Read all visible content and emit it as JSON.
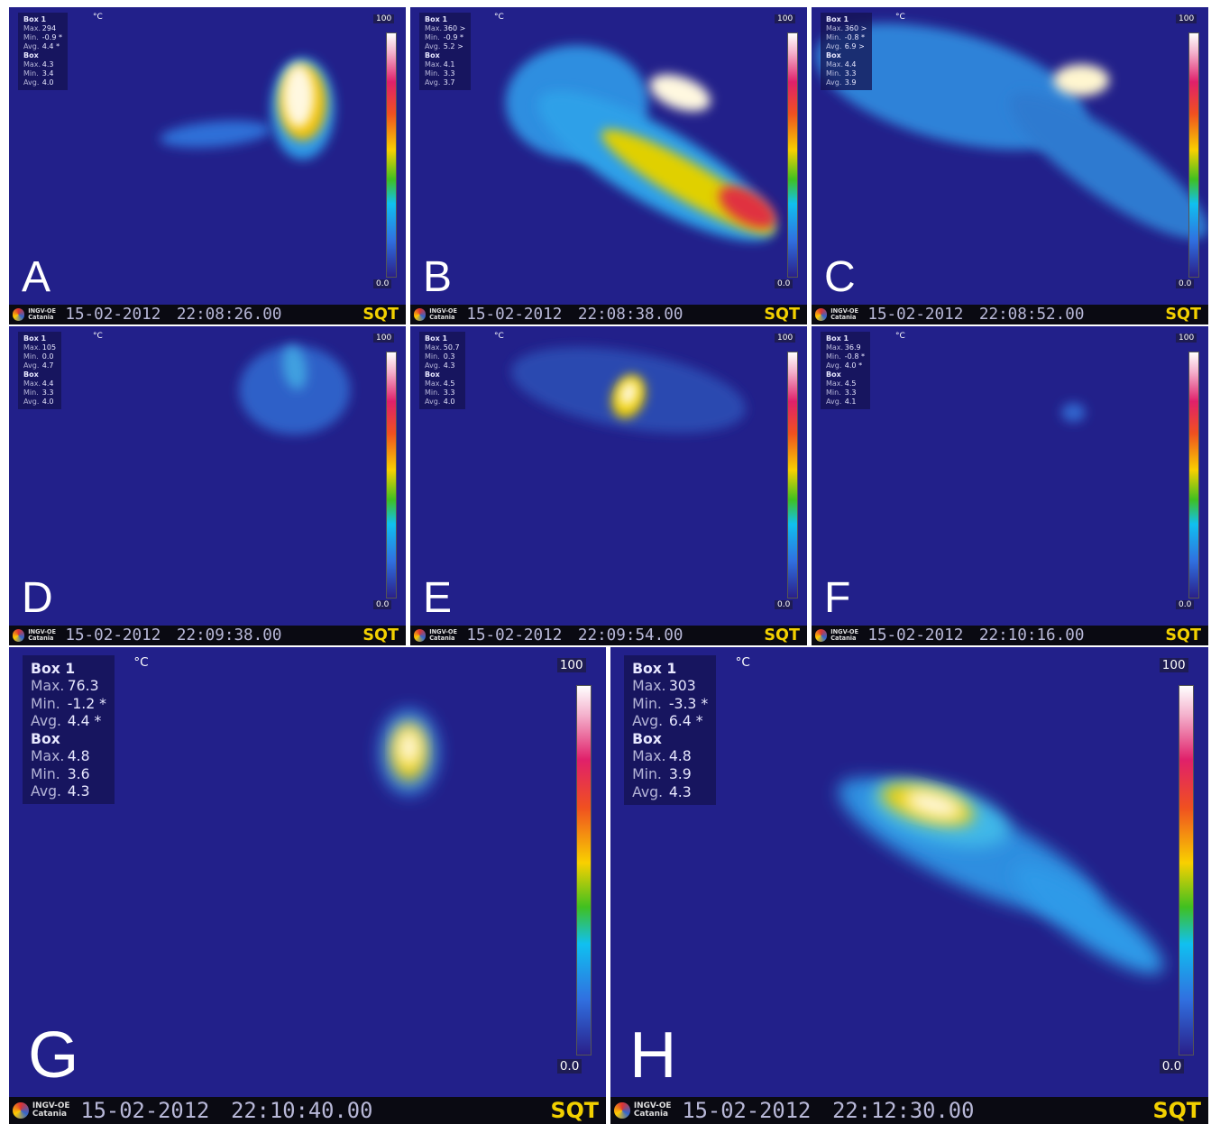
{
  "panels": [
    {
      "label": "A",
      "unit": "°C",
      "scale_max": "100",
      "scale_min": "0.0",
      "logo": "INGV-OE Catania",
      "date": "15-02-2012",
      "time": "22:08:26.00",
      "station": "SQT",
      "stats": [
        {
          "title": "Box 1",
          "rows": [
            [
              "Max.",
              "294"
            ],
            [
              "Min.",
              "-0.9 *"
            ],
            [
              "Avg.",
              "4.4 *"
            ]
          ]
        },
        {
          "title": "Box",
          "rows": [
            [
              "Max.",
              "4.3"
            ],
            [
              "Min.",
              "3.4"
            ],
            [
              "Avg.",
              "4.0"
            ]
          ]
        }
      ]
    },
    {
      "label": "B",
      "unit": "°C",
      "scale_max": "100",
      "scale_min": "0.0",
      "logo": "INGV-OE Catania",
      "date": "15-02-2012",
      "time": "22:08:38.00",
      "station": "SQT",
      "stats": [
        {
          "title": "Box 1",
          "rows": [
            [
              "Max.",
              "360 >"
            ],
            [
              "Min.",
              "-0.9 *"
            ],
            [
              "Avg.",
              "5.2 >"
            ]
          ]
        },
        {
          "title": "Box",
          "rows": [
            [
              "Max.",
              "4.1"
            ],
            [
              "Min.",
              "3.3"
            ],
            [
              "Avg.",
              "3.7"
            ]
          ]
        }
      ]
    },
    {
      "label": "C",
      "unit": "°C",
      "scale_max": "100",
      "scale_min": "0.0",
      "logo": "INGV-OE Catania",
      "date": "15-02-2012",
      "time": "22:08:52.00",
      "station": "SQT",
      "stats": [
        {
          "title": "Box 1",
          "rows": [
            [
              "Max.",
              "360 >"
            ],
            [
              "Min.",
              "-0.8 *"
            ],
            [
              "Avg.",
              "6.9 >"
            ]
          ]
        },
        {
          "title": "Box",
          "rows": [
            [
              "Max.",
              "4.4"
            ],
            [
              "Min.",
              "3.3"
            ],
            [
              "Avg.",
              "3.9"
            ]
          ]
        }
      ]
    },
    {
      "label": "D",
      "unit": "°C",
      "scale_max": "100",
      "scale_min": "0.0",
      "logo": "INGV-OE Catania",
      "date": "15-02-2012",
      "time": "22:09:38.00",
      "station": "SQT",
      "stats": [
        {
          "title": "Box 1",
          "rows": [
            [
              "Max.",
              "105"
            ],
            [
              "Min.",
              "0.0"
            ],
            [
              "Avg.",
              "4.7"
            ]
          ]
        },
        {
          "title": "Box",
          "rows": [
            [
              "Max.",
              "4.4"
            ],
            [
              "Min.",
              "3.3"
            ],
            [
              "Avg.",
              "4.0"
            ]
          ]
        }
      ]
    },
    {
      "label": "E",
      "unit": "°C",
      "scale_max": "100",
      "scale_min": "0.0",
      "logo": "INGV-OE Catania",
      "date": "15-02-2012",
      "time": "22:09:54.00",
      "station": "SQT",
      "stats": [
        {
          "title": "Box 1",
          "rows": [
            [
              "Max.",
              "50.7"
            ],
            [
              "Min.",
              "0.3"
            ],
            [
              "Avg.",
              "4.3"
            ]
          ]
        },
        {
          "title": "Box",
          "rows": [
            [
              "Max.",
              "4.5"
            ],
            [
              "Min.",
              "3.3"
            ],
            [
              "Avg.",
              "4.0"
            ]
          ]
        }
      ]
    },
    {
      "label": "F",
      "unit": "°C",
      "scale_max": "100",
      "scale_min": "0.0",
      "logo": "INGV-OE Catania",
      "date": "15-02-2012",
      "time": "22:10:16.00",
      "station": "SQT",
      "stats": [
        {
          "title": "Box 1",
          "rows": [
            [
              "Max.",
              "36.9"
            ],
            [
              "Min.",
              "-0.8 *"
            ],
            [
              "Avg.",
              "4.0 *"
            ]
          ]
        },
        {
          "title": "Box",
          "rows": [
            [
              "Max.",
              "4.5"
            ],
            [
              "Min.",
              "3.3"
            ],
            [
              "Avg.",
              "4.1"
            ]
          ]
        }
      ]
    },
    {
      "label": "G",
      "unit": "°C",
      "scale_max": "100",
      "scale_min": "0.0",
      "logo": "INGV-OE Catania",
      "date": "15-02-2012",
      "time": "22:10:40.00",
      "station": "SQT",
      "stats": [
        {
          "title": "Box 1",
          "rows": [
            [
              "Max.",
              "76.3"
            ],
            [
              "Min.",
              "-1.2 *"
            ],
            [
              "Avg.",
              "4.4 *"
            ]
          ]
        },
        {
          "title": "Box",
          "rows": [
            [
              "Max.",
              "4.8"
            ],
            [
              "Min.",
              "3.6"
            ],
            [
              "Avg.",
              "4.3"
            ]
          ]
        }
      ]
    },
    {
      "label": "H",
      "unit": "°C",
      "scale_max": "100",
      "scale_min": "0.0",
      "logo": "INGV-OE Catania",
      "date": "15-02-2012",
      "time": "22:12:30.00",
      "station": "SQT",
      "stats": [
        {
          "title": "Box 1",
          "rows": [
            [
              "Max.",
              "303"
            ],
            [
              "Min.",
              "-3.3 *"
            ],
            [
              "Avg.",
              "6.4 *"
            ]
          ]
        },
        {
          "title": "Box",
          "rows": [
            [
              "Max.",
              "4.8"
            ],
            [
              "Min.",
              "3.9"
            ],
            [
              "Avg.",
              "4.3"
            ]
          ]
        }
      ]
    }
  ]
}
